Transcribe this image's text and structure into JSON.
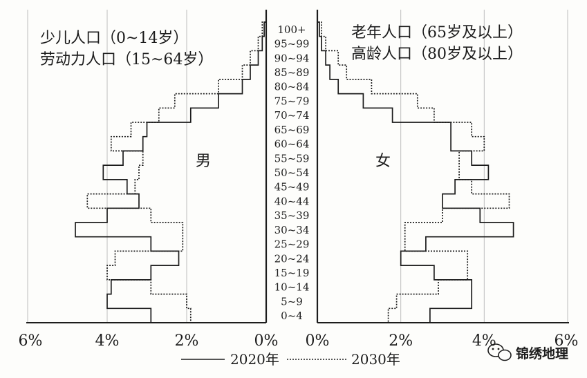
{
  "chart_data": {
    "type": "population_pyramid",
    "age_groups": [
      "0~4",
      "5~9",
      "10~14",
      "15~19",
      "20~24",
      "25~29",
      "30~34",
      "35~39",
      "40~44",
      "45~49",
      "50~54",
      "55~59",
      "60~64",
      "65~69",
      "70~74",
      "75~79",
      "80~84",
      "85~89",
      "90~94",
      "95~99",
      "100+"
    ],
    "x_ticks_left": [
      "6%",
      "4%",
      "2%",
      "0%"
    ],
    "x_ticks_right": [
      "0%",
      "2%",
      "4%",
      "6%"
    ],
    "xlim": [
      0,
      6
    ],
    "side_labels": {
      "male": "男",
      "female": "女"
    },
    "series": [
      {
        "name": "2020年",
        "style": "solid",
        "male": [
          2.9,
          4.0,
          3.9,
          2.9,
          2.2,
          2.9,
          4.8,
          4.0,
          3.2,
          3.5,
          4.1,
          3.6,
          3.1,
          3.0,
          1.9,
          1.2,
          0.6,
          0.4,
          0.2,
          0.1,
          0.05
        ],
        "female": [
          2.7,
          3.7,
          3.7,
          2.8,
          2.0,
          2.6,
          4.7,
          3.9,
          3.0,
          3.3,
          4.1,
          3.7,
          3.2,
          3.2,
          1.8,
          1.1,
          0.5,
          0.3,
          0.2,
          0.1,
          0.05
        ]
      },
      {
        "name": "2030年",
        "style": "dotted",
        "male": [
          1.9,
          2.0,
          2.9,
          4.0,
          3.8,
          2.1,
          2.1,
          2.9,
          4.5,
          3.3,
          3.2,
          3.1,
          3.9,
          3.4,
          2.7,
          2.3,
          1.2,
          0.6,
          0.4,
          0.2,
          0.1
        ],
        "female": [
          1.7,
          1.9,
          2.9,
          3.6,
          3.6,
          2.1,
          2.1,
          3.0,
          4.6,
          3.7,
          3.4,
          3.4,
          4.0,
          3.7,
          2.8,
          2.4,
          1.3,
          0.7,
          0.5,
          0.2,
          0.1
        ]
      }
    ]
  },
  "annotations": {
    "left_line1": "少儿人口（0~14岁）",
    "left_line2": "劳动力人口（15~64岁）",
    "right_line1": "老年人口（65岁及以上）",
    "right_line2": "高龄人口（80岁及以上）"
  },
  "legend": {
    "solid_label": "2020年",
    "dotted_label": "2030年"
  },
  "watermark": {
    "text": "锦绣地理",
    "icon": "wechat-icon"
  }
}
